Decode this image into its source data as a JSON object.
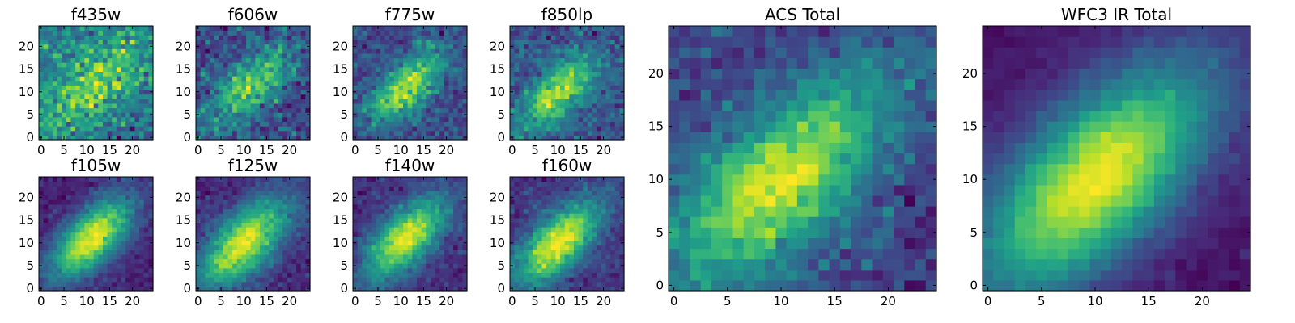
{
  "chart_data": [
    {
      "type": "heatmap",
      "title": "f435w",
      "xlim": [
        -0.5,
        24.5
      ],
      "ylim": [
        -0.5,
        24.5
      ],
      "x_ticks": [
        "0",
        "5",
        "10",
        "15",
        "20"
      ],
      "y_ticks": [
        "0",
        "5",
        "10",
        "15",
        "20"
      ],
      "grid": false,
      "colormap": "viridis",
      "grid_size": 25,
      "peak_x": 12,
      "peak_y": 12,
      "sigma": 6,
      "noise": 1.6,
      "seed": 3
    },
    {
      "type": "heatmap",
      "title": "f606w",
      "xlim": [
        -0.5,
        24.5
      ],
      "ylim": [
        -0.5,
        24.5
      ],
      "x_ticks": [
        "0",
        "5",
        "10",
        "15",
        "20"
      ],
      "y_ticks": [
        "0",
        "5",
        "10",
        "15",
        "20"
      ],
      "grid": false,
      "colormap": "viridis",
      "grid_size": 25,
      "peak_x": 11,
      "peak_y": 11,
      "sigma": 5,
      "noise": 0.9,
      "seed": 7
    },
    {
      "type": "heatmap",
      "title": "f775w",
      "xlim": [
        -0.5,
        24.5
      ],
      "ylim": [
        -0.5,
        24.5
      ],
      "x_ticks": [
        "0",
        "5",
        "10",
        "15",
        "20"
      ],
      "y_ticks": [
        "0",
        "5",
        "10",
        "15",
        "20"
      ],
      "grid": false,
      "colormap": "viridis",
      "grid_size": 25,
      "peak_x": 11,
      "peak_y": 11,
      "sigma": 4.5,
      "noise": 0.6,
      "seed": 11
    },
    {
      "type": "heatmap",
      "title": "f850lp",
      "xlim": [
        -0.5,
        24.5
      ],
      "ylim": [
        -0.5,
        24.5
      ],
      "x_ticks": [
        "0",
        "5",
        "10",
        "15",
        "20"
      ],
      "y_ticks": [
        "0",
        "5",
        "10",
        "15",
        "20"
      ],
      "grid": false,
      "colormap": "viridis",
      "grid_size": 25,
      "peak_x": 10,
      "peak_y": 10,
      "sigma": 4.5,
      "noise": 0.65,
      "seed": 13
    },
    {
      "type": "heatmap",
      "title": "f105w",
      "xlim": [
        -0.5,
        24.5
      ],
      "ylim": [
        -0.5,
        24.5
      ],
      "x_ticks": [
        "0",
        "5",
        "10",
        "15",
        "20"
      ],
      "y_ticks": [
        "0",
        "5",
        "10",
        "15",
        "20"
      ],
      "grid": false,
      "colormap": "viridis",
      "grid_size": 25,
      "peak_x": 11,
      "peak_y": 11,
      "sigma": 5,
      "noise": 0.25,
      "seed": 17
    },
    {
      "type": "heatmap",
      "title": "f125w",
      "xlim": [
        -0.5,
        24.5
      ],
      "ylim": [
        -0.5,
        24.5
      ],
      "x_ticks": [
        "0",
        "5",
        "10",
        "15",
        "20"
      ],
      "y_ticks": [
        "0",
        "5",
        "10",
        "15",
        "20"
      ],
      "grid": false,
      "colormap": "viridis",
      "grid_size": 25,
      "peak_x": 10,
      "peak_y": 10,
      "sigma": 5.5,
      "noise": 0.3,
      "seed": 19
    },
    {
      "type": "heatmap",
      "title": "f140w",
      "xlim": [
        -0.5,
        24.5
      ],
      "ylim": [
        -0.5,
        24.5
      ],
      "x_ticks": [
        "0",
        "5",
        "10",
        "15",
        "20"
      ],
      "y_ticks": [
        "0",
        "5",
        "10",
        "15",
        "20"
      ],
      "grid": false,
      "colormap": "viridis",
      "grid_size": 25,
      "peak_x": 11,
      "peak_y": 11,
      "sigma": 5,
      "noise": 0.3,
      "seed": 23
    },
    {
      "type": "heatmap",
      "title": "f160w",
      "xlim": [
        -0.5,
        24.5
      ],
      "ylim": [
        -0.5,
        24.5
      ],
      "x_ticks": [
        "0",
        "5",
        "10",
        "15",
        "20"
      ],
      "y_ticks": [
        "0",
        "5",
        "10",
        "15",
        "20"
      ],
      "grid": false,
      "colormap": "viridis",
      "grid_size": 25,
      "peak_x": 10,
      "peak_y": 10,
      "sigma": 5,
      "noise": 0.3,
      "seed": 29
    },
    {
      "type": "heatmap",
      "title": "ACS Total",
      "xlim": [
        -0.5,
        24.5
      ],
      "ylim": [
        -0.5,
        24.5
      ],
      "x_ticks": [
        "0",
        "5",
        "10",
        "15",
        "20"
      ],
      "y_ticks": [
        "0",
        "5",
        "10",
        "15",
        "20"
      ],
      "grid": false,
      "colormap": "viridis",
      "grid_size": 25,
      "peak_x": 10,
      "peak_y": 10,
      "sigma": 5.5,
      "noise": 0.45,
      "seed": 31
    },
    {
      "type": "heatmap",
      "title": "WFC3 IR Total",
      "xlim": [
        -0.5,
        24.5
      ],
      "ylim": [
        -0.5,
        24.5
      ],
      "x_ticks": [
        "0",
        "5",
        "10",
        "15",
        "20"
      ],
      "y_ticks": [
        "0",
        "5",
        "10",
        "15",
        "20"
      ],
      "grid": false,
      "colormap": "viridis",
      "grid_size": 25,
      "peak_x": 10,
      "peak_y": 10,
      "sigma": 6,
      "noise": 0.12,
      "seed": 37
    }
  ]
}
